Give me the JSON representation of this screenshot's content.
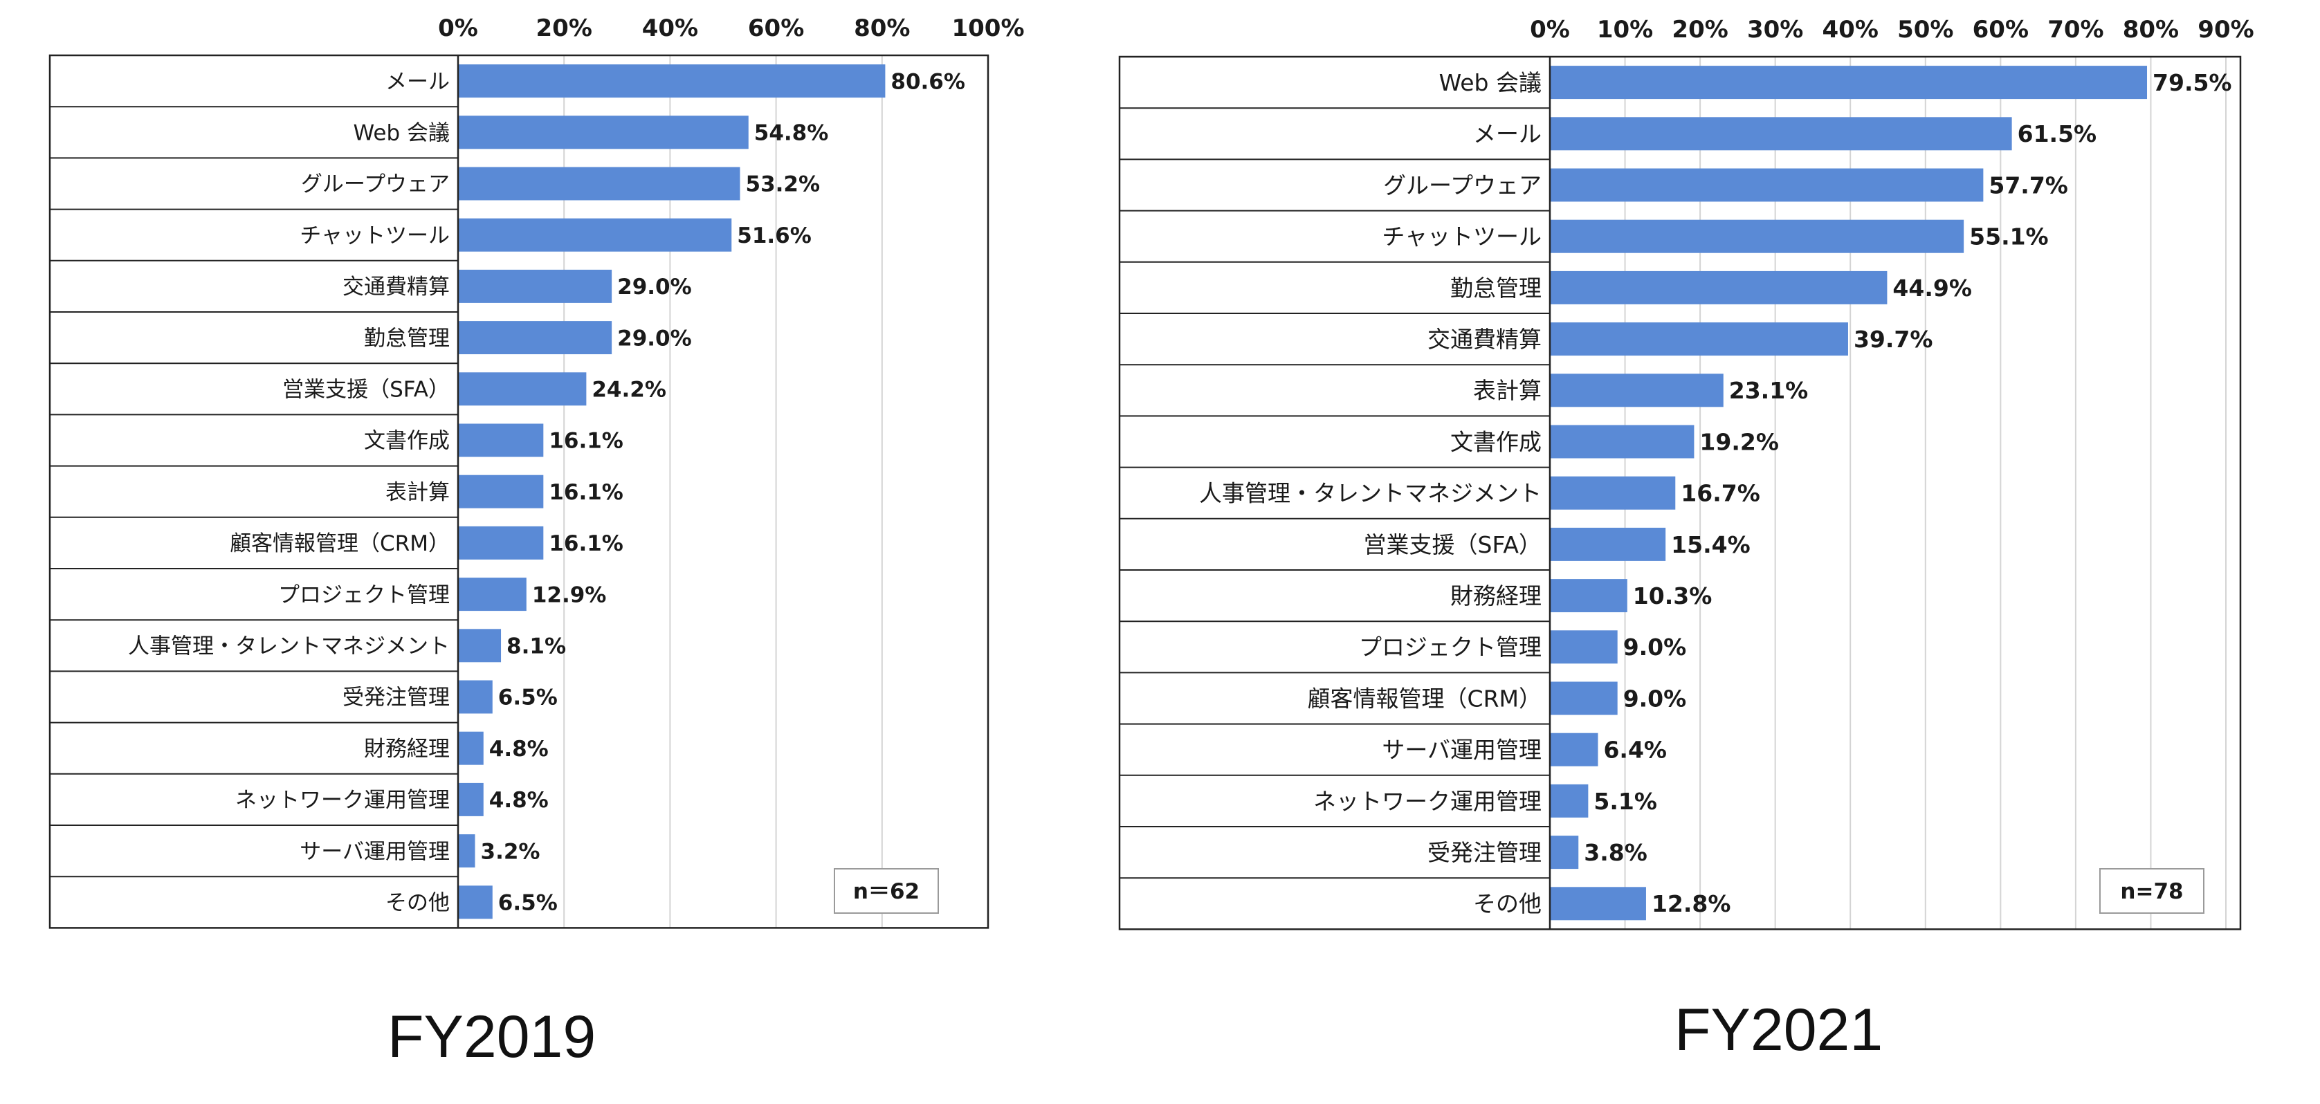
{
  "colors": {
    "bar": "#5a8ad6",
    "grid": "#d4d4d4",
    "frame": "#222222",
    "text": "#1a1a1a"
  },
  "chart_data": [
    {
      "type": "bar",
      "orientation": "horizontal",
      "title": "FY2019",
      "n_label": "n＝62",
      "xlim": [
        0,
        100
      ],
      "ticks": [
        0,
        20,
        40,
        60,
        80,
        100
      ],
      "tick_labels": [
        "0%",
        "20%",
        "40%",
        "60%",
        "80%",
        "100%"
      ],
      "categories": [
        "メール",
        "Web 会議",
        "グループウェア",
        "チャットツール",
        "交通費精算",
        "勤怠管理",
        "営業支援（SFA）",
        "文書作成",
        "表計算",
        "顧客情報管理（CRM）",
        "プロジェクト管理",
        "人事管理・タレントマネジメント",
        "受発注管理",
        "財務経理",
        "ネットワーク運用管理",
        "サーバ運用管理",
        "その他"
      ],
      "values": [
        80.6,
        54.8,
        53.2,
        51.6,
        29.0,
        29.0,
        24.2,
        16.1,
        16.1,
        16.1,
        12.9,
        8.1,
        6.5,
        4.8,
        4.8,
        3.2,
        6.5
      ],
      "value_labels": [
        "80.6%",
        "54.8%",
        "53.2%",
        "51.6%",
        "29.0%",
        "29.0%",
        "24.2%",
        "16.1%",
        "16.1%",
        "16.1%",
        "12.9%",
        "8.1%",
        "6.5%",
        "4.8%",
        "4.8%",
        "3.2%",
        "6.5%"
      ]
    },
    {
      "type": "bar",
      "orientation": "horizontal",
      "title": "FY2021",
      "n_label": "n=78",
      "xlim": [
        0,
        90
      ],
      "ticks": [
        0,
        10,
        20,
        30,
        40,
        50,
        60,
        70,
        80,
        90
      ],
      "tick_labels": [
        "0%",
        "10%",
        "20%",
        "30%",
        "40%",
        "50%",
        "60%",
        "70%",
        "80%",
        "90%"
      ],
      "categories": [
        "Web 会議",
        "メール",
        "グループウェア",
        "チャットツール",
        "勤怠管理",
        "交通費精算",
        "表計算",
        "文書作成",
        "人事管理・タレントマネジメント",
        "営業支援（SFA）",
        "財務経理",
        "プロジェクト管理",
        "顧客情報管理（CRM）",
        "サーバ運用管理",
        "ネットワーク運用管理",
        "受発注管理",
        "その他"
      ],
      "values": [
        79.5,
        61.5,
        57.7,
        55.1,
        44.9,
        39.7,
        23.1,
        19.2,
        16.7,
        15.4,
        10.3,
        9.0,
        9.0,
        6.4,
        5.1,
        3.8,
        12.8
      ],
      "value_labels": [
        "79.5%",
        "61.5%",
        "57.7%",
        "55.1%",
        "44.9%",
        "39.7%",
        "23.1%",
        "19.2%",
        "16.7%",
        "15.4%",
        "10.3%",
        "9.0%",
        "9.0%",
        "6.4%",
        "5.1%",
        "3.8%",
        "12.8%"
      ]
    }
  ]
}
